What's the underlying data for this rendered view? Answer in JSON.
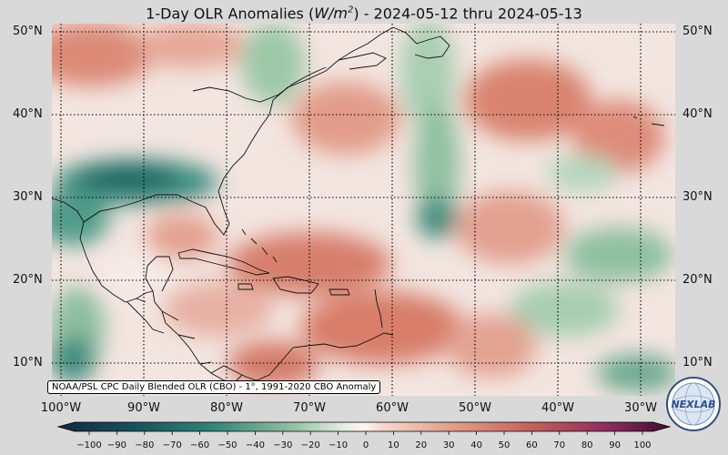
{
  "title": {
    "prefix": "1-Day OLR Anomalies (",
    "unit_var": "W/m",
    "unit_exp": "2",
    "suffix": ") - 2024-05-12 thru 2024-05-13"
  },
  "map": {
    "lon_range": [
      -102,
      -26
    ],
    "lat_range": [
      6,
      51
    ],
    "lat_labels": [
      "50°N",
      "40°N",
      "30°N",
      "20°N",
      "10°N"
    ],
    "lat_values": [
      50,
      40,
      30,
      20,
      10
    ],
    "lon_labels": [
      "100°W",
      "90°W",
      "80°W",
      "70°W",
      "60°W",
      "50°W",
      "40°W",
      "30°W"
    ],
    "lon_values": [
      -100,
      -90,
      -80,
      -70,
      -60,
      -50,
      -40,
      -30
    ]
  },
  "source_note": "NOAA/PSL CPC Daily Blended OLR (CBO) - 1°, 1991-2020 CBO Anomaly",
  "colorbar": {
    "ticks": [
      "−100",
      "−90",
      "−80",
      "−70",
      "−60",
      "−50",
      "−40",
      "−30",
      "−20",
      "−10",
      "0",
      "10",
      "20",
      "30",
      "40",
      "50",
      "60",
      "70",
      "80",
      "90",
      "100"
    ],
    "range": [
      -100,
      100
    ]
  },
  "logo": {
    "text": "NEXLAB",
    "icon": "nexlab-globe-logo"
  },
  "colors": {
    "negative_strong": "#1c5a55",
    "negative": "#7fb89a",
    "neutral": "#f7ede9",
    "positive": "#dd8a78",
    "positive_strong": "#7a1f5a"
  }
}
